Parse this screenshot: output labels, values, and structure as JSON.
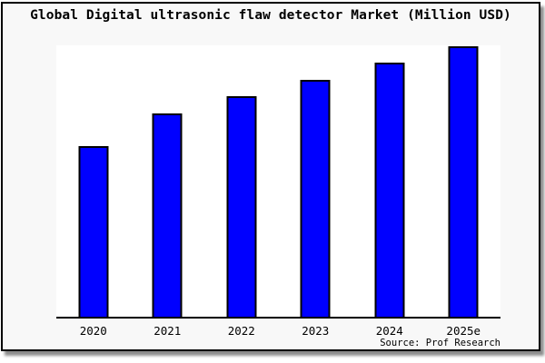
{
  "chart_data": {
    "type": "bar",
    "title": "Global Digital ultrasonic flaw detector Market (Million USD)",
    "categories": [
      "2020",
      "2021",
      "2022",
      "2023",
      "2024",
      "2025e"
    ],
    "values": [
      63,
      75,
      81.5,
      87.5,
      94,
      100
    ],
    "value_note": "y-axis shows no tick labels or gridlines; values estimated as percent of tallest bar (2025e = 100)",
    "xlabel": "",
    "ylabel": "",
    "ylim": [
      0,
      100
    ],
    "grid": false,
    "legend": false,
    "bar_color": "#0000FF",
    "bar_border_color": "#000000",
    "source": "Source: Prof Research"
  },
  "footer": {
    "source_text": "Source: Prof Research"
  },
  "colors": {
    "accent_bar": "#0000FF",
    "frame_background": "#F8F8F8",
    "plot_background": "#FFFFFF",
    "axis_line": "#000000",
    "frame_border": "#000000"
  }
}
